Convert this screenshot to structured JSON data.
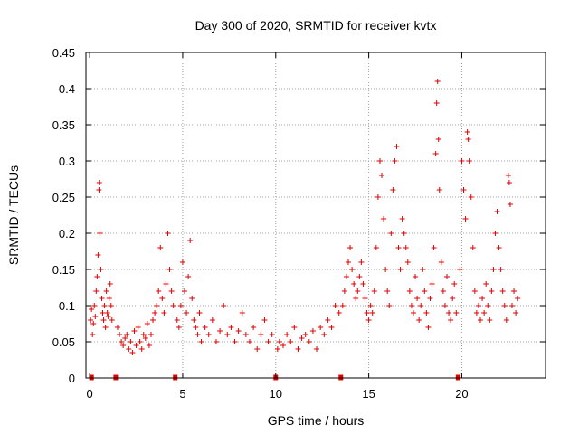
{
  "chart_data": {
    "type": "scatter",
    "title": "Day 300 of 2020, SRMTID for receiver kvtx",
    "xlabel": "GPS time / hours",
    "ylabel": "SRMTID / TECUs",
    "xlim": [
      -0.2,
      24.5
    ],
    "ylim": [
      0,
      0.45
    ],
    "xticks": [
      0,
      5,
      10,
      15,
      20
    ],
    "xtick_labels": [
      "0",
      "5",
      "10",
      "15",
      "20"
    ],
    "yticks": [
      0,
      0.05,
      0.1,
      0.15,
      0.2,
      0.25,
      0.3,
      0.35,
      0.4,
      0.45
    ],
    "ytick_labels": [
      "0",
      "0.05",
      "0.1",
      "0.15",
      "0.2",
      "0.25",
      "0.3",
      "0.35",
      "0.4",
      "0.45"
    ],
    "grid": true,
    "marker": "+",
    "series_color": "#e00000",
    "gap_markers_x": [
      0.1,
      1.4,
      4.6,
      10.0,
      13.5,
      19.8
    ],
    "series": [
      {
        "name": "SRMTID",
        "points": [
          [
            0.05,
            0.08
          ],
          [
            0.1,
            0.095
          ],
          [
            0.15,
            0.06
          ],
          [
            0.2,
            0.075
          ],
          [
            0.25,
            0.1
          ],
          [
            0.3,
            0.085
          ],
          [
            0.35,
            0.12
          ],
          [
            0.4,
            0.14
          ],
          [
            0.45,
            0.17
          ],
          [
            0.5,
            0.26
          ],
          [
            0.52,
            0.27
          ],
          [
            0.55,
            0.2
          ],
          [
            0.6,
            0.15
          ],
          [
            0.65,
            0.11
          ],
          [
            0.7,
            0.09
          ],
          [
            0.75,
            0.08
          ],
          [
            0.8,
            0.1
          ],
          [
            0.85,
            0.07
          ],
          [
            0.9,
            0.12
          ],
          [
            0.95,
            0.09
          ],
          [
            1.0,
            0.085
          ],
          [
            1.05,
            0.11
          ],
          [
            1.1,
            0.13
          ],
          [
            1.15,
            0.1
          ],
          [
            1.2,
            0.08
          ],
          [
            1.5,
            0.07
          ],
          [
            1.6,
            0.06
          ],
          [
            1.7,
            0.05
          ],
          [
            1.8,
            0.045
          ],
          [
            1.9,
            0.055
          ],
          [
            2.0,
            0.06
          ],
          [
            2.1,
            0.04
          ],
          [
            2.2,
            0.05
          ],
          [
            2.3,
            0.035
          ],
          [
            2.4,
            0.065
          ],
          [
            2.5,
            0.045
          ],
          [
            2.6,
            0.07
          ],
          [
            2.7,
            0.05
          ],
          [
            2.8,
            0.04
          ],
          [
            2.9,
            0.06
          ],
          [
            3.0,
            0.055
          ],
          [
            3.1,
            0.075
          ],
          [
            3.2,
            0.045
          ],
          [
            3.3,
            0.06
          ],
          [
            3.4,
            0.08
          ],
          [
            3.5,
            0.09
          ],
          [
            3.6,
            0.1
          ],
          [
            3.7,
            0.12
          ],
          [
            3.8,
            0.18
          ],
          [
            3.9,
            0.11
          ],
          [
            4.0,
            0.09
          ],
          [
            4.1,
            0.13
          ],
          [
            4.2,
            0.2
          ],
          [
            4.3,
            0.15
          ],
          [
            4.4,
            0.12
          ],
          [
            4.5,
            0.1
          ],
          [
            4.7,
            0.08
          ],
          [
            4.8,
            0.07
          ],
          [
            4.9,
            0.1
          ],
          [
            5.0,
            0.16
          ],
          [
            5.1,
            0.12
          ],
          [
            5.2,
            0.09
          ],
          [
            5.3,
            0.14
          ],
          [
            5.4,
            0.19
          ],
          [
            5.5,
            0.11
          ],
          [
            5.6,
            0.08
          ],
          [
            5.7,
            0.07
          ],
          [
            5.8,
            0.06
          ],
          [
            5.9,
            0.09
          ],
          [
            6.0,
            0.05
          ],
          [
            6.2,
            0.07
          ],
          [
            6.4,
            0.06
          ],
          [
            6.6,
            0.08
          ],
          [
            6.8,
            0.05
          ],
          [
            7.0,
            0.065
          ],
          [
            7.2,
            0.1
          ],
          [
            7.4,
            0.06
          ],
          [
            7.6,
            0.07
          ],
          [
            7.8,
            0.05
          ],
          [
            8.0,
            0.065
          ],
          [
            8.2,
            0.09
          ],
          [
            8.4,
            0.06
          ],
          [
            8.6,
            0.05
          ],
          [
            8.8,
            0.07
          ],
          [
            9.0,
            0.04
          ],
          [
            9.2,
            0.06
          ],
          [
            9.4,
            0.08
          ],
          [
            9.6,
            0.05
          ],
          [
            9.8,
            0.06
          ],
          [
            10.1,
            0.04
          ],
          [
            10.2,
            0.05
          ],
          [
            10.4,
            0.045
          ],
          [
            10.6,
            0.06
          ],
          [
            10.8,
            0.05
          ],
          [
            11.0,
            0.07
          ],
          [
            11.2,
            0.04
          ],
          [
            11.4,
            0.055
          ],
          [
            11.6,
            0.06
          ],
          [
            11.8,
            0.05
          ],
          [
            12.0,
            0.065
          ],
          [
            12.2,
            0.04
          ],
          [
            12.4,
            0.07
          ],
          [
            12.6,
            0.06
          ],
          [
            12.8,
            0.08
          ],
          [
            13.0,
            0.07
          ],
          [
            13.2,
            0.1
          ],
          [
            13.4,
            0.09
          ],
          [
            13.6,
            0.1
          ],
          [
            13.7,
            0.12
          ],
          [
            13.8,
            0.14
          ],
          [
            13.9,
            0.16
          ],
          [
            14.0,
            0.18
          ],
          [
            14.1,
            0.15
          ],
          [
            14.2,
            0.13
          ],
          [
            14.3,
            0.11
          ],
          [
            14.4,
            0.12
          ],
          [
            14.5,
            0.14
          ],
          [
            14.6,
            0.16
          ],
          [
            14.7,
            0.13
          ],
          [
            14.8,
            0.11
          ],
          [
            14.9,
            0.09
          ],
          [
            15.0,
            0.08
          ],
          [
            15.1,
            0.1
          ],
          [
            15.2,
            0.09
          ],
          [
            15.3,
            0.12
          ],
          [
            15.4,
            0.18
          ],
          [
            15.5,
            0.25
          ],
          [
            15.6,
            0.3
          ],
          [
            15.7,
            0.28
          ],
          [
            15.8,
            0.22
          ],
          [
            15.9,
            0.15
          ],
          [
            16.0,
            0.12
          ],
          [
            16.1,
            0.1
          ],
          [
            16.2,
            0.2
          ],
          [
            16.3,
            0.26
          ],
          [
            16.4,
            0.3
          ],
          [
            16.5,
            0.32
          ],
          [
            16.6,
            0.18
          ],
          [
            16.7,
            0.15
          ],
          [
            16.8,
            0.22
          ],
          [
            16.9,
            0.2
          ],
          [
            17.0,
            0.18
          ],
          [
            17.1,
            0.16
          ],
          [
            17.2,
            0.12
          ],
          [
            17.3,
            0.1
          ],
          [
            17.4,
            0.09
          ],
          [
            17.5,
            0.14
          ],
          [
            17.6,
            0.11
          ],
          [
            17.7,
            0.08
          ],
          [
            17.8,
            0.1
          ],
          [
            17.9,
            0.15
          ],
          [
            18.0,
            0.12
          ],
          [
            18.1,
            0.09
          ],
          [
            18.2,
            0.07
          ],
          [
            18.3,
            0.11
          ],
          [
            18.4,
            0.13
          ],
          [
            18.5,
            0.18
          ],
          [
            18.6,
            0.31
          ],
          [
            18.65,
            0.38
          ],
          [
            18.7,
            0.41
          ],
          [
            18.75,
            0.33
          ],
          [
            18.8,
            0.26
          ],
          [
            18.9,
            0.16
          ],
          [
            19.0,
            0.12
          ],
          [
            19.1,
            0.1
          ],
          [
            19.2,
            0.14
          ],
          [
            19.3,
            0.09
          ],
          [
            19.4,
            0.08
          ],
          [
            19.5,
            0.11
          ],
          [
            19.6,
            0.13
          ],
          [
            19.7,
            0.09
          ],
          [
            19.9,
            0.15
          ],
          [
            20.0,
            0.3
          ],
          [
            20.1,
            0.26
          ],
          [
            20.2,
            0.22
          ],
          [
            20.3,
            0.34
          ],
          [
            20.35,
            0.33
          ],
          [
            20.4,
            0.3
          ],
          [
            20.5,
            0.25
          ],
          [
            20.6,
            0.18
          ],
          [
            20.7,
            0.12
          ],
          [
            20.8,
            0.09
          ],
          [
            20.9,
            0.1
          ],
          [
            21.0,
            0.08
          ],
          [
            21.1,
            0.11
          ],
          [
            21.2,
            0.09
          ],
          [
            21.3,
            0.13
          ],
          [
            21.4,
            0.1
          ],
          [
            21.5,
            0.08
          ],
          [
            21.6,
            0.12
          ],
          [
            21.7,
            0.15
          ],
          [
            21.8,
            0.2
          ],
          [
            21.9,
            0.23
          ],
          [
            22.0,
            0.18
          ],
          [
            22.1,
            0.15
          ],
          [
            22.2,
            0.12
          ],
          [
            22.3,
            0.1
          ],
          [
            22.4,
            0.08
          ],
          [
            22.5,
            0.28
          ],
          [
            22.55,
            0.27
          ],
          [
            22.6,
            0.24
          ],
          [
            22.7,
            0.1
          ],
          [
            22.8,
            0.12
          ],
          [
            22.9,
            0.09
          ],
          [
            23.0,
            0.11
          ]
        ]
      }
    ]
  }
}
